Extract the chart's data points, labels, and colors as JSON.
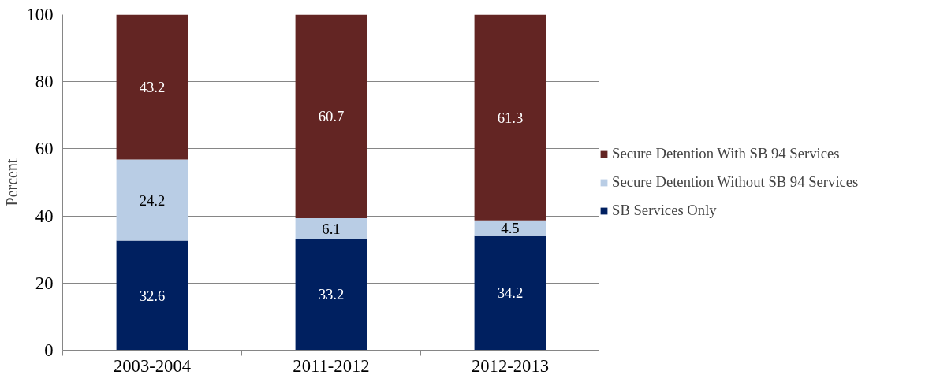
{
  "chart_data": {
    "type": "bar",
    "stacked": true,
    "ylabel": "Percent",
    "categories": [
      "2003-2004",
      "2011-2012",
      "2012-2013"
    ],
    "series": [
      {
        "name": "SB Services Only",
        "color": "#002060",
        "values": [
          32.6,
          33.2,
          34.2
        ]
      },
      {
        "name": "Secure Detention Without SB 94 Services",
        "color": "#b9cde5",
        "values": [
          24.2,
          6.1,
          4.5
        ]
      },
      {
        "name": "Secure Detention With SB 94 Services",
        "color": "#632523",
        "values": [
          43.2,
          60.7,
          61.3
        ]
      }
    ],
    "ylim": [
      0,
      100
    ],
    "yticks": [
      0,
      20,
      40,
      60,
      80,
      100
    ],
    "grid": "y",
    "legend": "right",
    "data_labels": true
  }
}
